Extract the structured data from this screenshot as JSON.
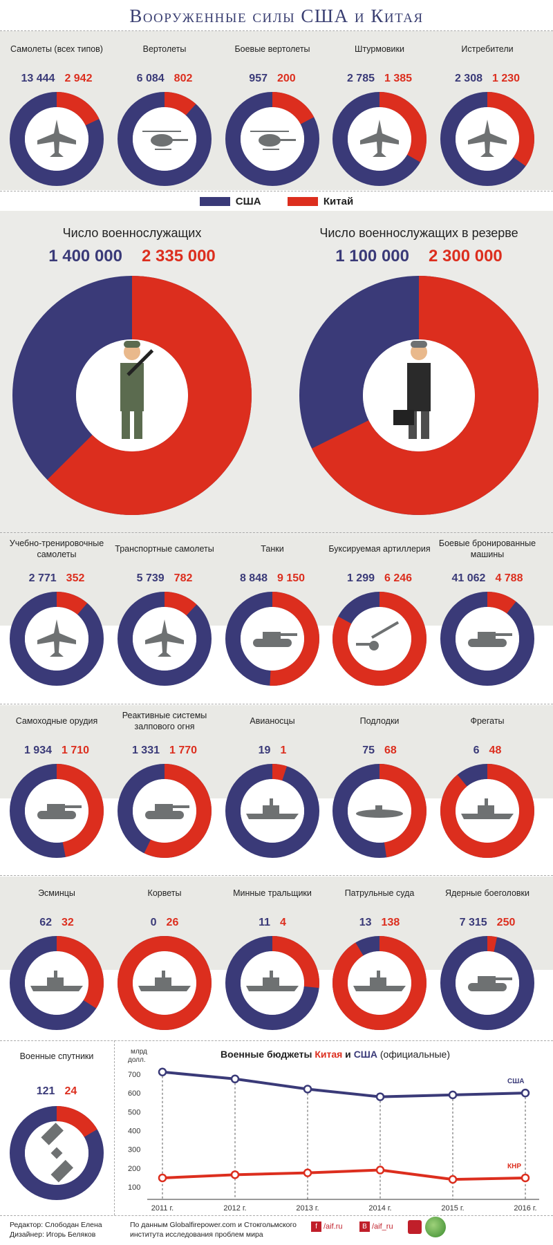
{
  "page_title": "Вооруженные силы США и Китая",
  "legend": {
    "us": "США",
    "cn": "Китай"
  },
  "colors": {
    "us": "#3a3a78",
    "cn": "#dc2e1e",
    "inner_bg": "#ffffff",
    "band_bg": "#e9e9e5"
  },
  "sections": [
    [
      {
        "label": "Самолеты (всех типов)",
        "us": "13 444",
        "cn": "2 942",
        "us_value": 13444,
        "cn_value": 2942,
        "icon": "aircraft-icon"
      },
      {
        "label": "Вертолеты",
        "us": "6 084",
        "cn": "802",
        "us_value": 6084,
        "cn_value": 802,
        "icon": "helicopter-icon"
      },
      {
        "label": "Боевые вертолеты",
        "us": "957",
        "cn": "200",
        "us_value": 957,
        "cn_value": 200,
        "icon": "attack-helicopter-icon"
      },
      {
        "label": "Штурмовики",
        "us": "2 785",
        "cn": "1 385",
        "us_value": 2785,
        "cn_value": 1385,
        "icon": "attack-aircraft-icon"
      },
      {
        "label": "Истребители",
        "us": "2 308",
        "cn": "1 230",
        "us_value": 2308,
        "cn_value": 1230,
        "icon": "fighter-icon"
      }
    ],
    [
      {
        "label": "Учебно-тренировочные самолеты",
        "us": "2 771",
        "cn": "352",
        "us_value": 2771,
        "cn_value": 352,
        "icon": "trainer-aircraft-icon"
      },
      {
        "label": "Транспортные самолеты",
        "us": "5 739",
        "cn": "782",
        "us_value": 5739,
        "cn_value": 782,
        "icon": "transport-aircraft-icon"
      },
      {
        "label": "Танки",
        "us": "8 848",
        "cn": "9 150",
        "us_value": 8848,
        "cn_value": 9150,
        "icon": "tank-icon"
      },
      {
        "label": "Буксируемая артиллерия",
        "us": "1 299",
        "cn": "6 246",
        "us_value": 1299,
        "cn_value": 6246,
        "icon": "artillery-icon"
      },
      {
        "label": "Боевые бронированные машины",
        "us": "41 062",
        "cn": "4 788",
        "us_value": 41062,
        "cn_value": 4788,
        "icon": "armored-vehicle-icon"
      }
    ],
    [
      {
        "label": "Самоходные орудия",
        "us": "1 934",
        "cn": "1 710",
        "us_value": 1934,
        "cn_value": 1710,
        "icon": "self-propelled-gun-icon"
      },
      {
        "label": "Реактивные системы залпового огня",
        "us": "1 331",
        "cn": "1 770",
        "us_value": 1331,
        "cn_value": 1770,
        "icon": "rocket-launcher-icon"
      },
      {
        "label": "Авианосцы",
        "us": "19",
        "cn": "1",
        "us_value": 19,
        "cn_value": 1,
        "icon": "aircraft-carrier-icon"
      },
      {
        "label": "Подлодки",
        "us": "75",
        "cn": "68",
        "us_value": 75,
        "cn_value": 68,
        "icon": "submarine-icon"
      },
      {
        "label": "Фрегаты",
        "us": "6",
        "cn": "48",
        "us_value": 6,
        "cn_value": 48,
        "icon": "frigate-icon"
      }
    ],
    [
      {
        "label": "Эсминцы",
        "us": "62",
        "cn": "32",
        "us_value": 62,
        "cn_value": 32,
        "icon": "destroyer-icon"
      },
      {
        "label": "Корветы",
        "us": "0",
        "cn": "26",
        "us_value": 0,
        "cn_value": 26,
        "icon": "corvette-icon"
      },
      {
        "label": "Минные тральщики",
        "us": "11",
        "cn": "4",
        "us_value": 11,
        "cn_value": 4,
        "icon": "minesweeper-icon"
      },
      {
        "label": "Патрульные суда",
        "us": "13",
        "cn": "138",
        "us_value": 13,
        "cn_value": 138,
        "icon": "patrol-boat-icon"
      },
      {
        "label": "Ядерные боеголовки",
        "us": "7 315",
        "cn": "250",
        "us_value": 7315,
        "cn_value": 250,
        "icon": "nuclear-warhead-icon"
      }
    ]
  ],
  "personnel": [
    {
      "label": "Число военнослужащих",
      "us": "1 400 000",
      "cn": "2 335 000",
      "us_value": 1400000,
      "cn_value": 2335000,
      "icon": "soldier-icon"
    },
    {
      "label": "Число военнослужащих в резерве",
      "us": "1 100 000",
      "cn": "2 300 000",
      "us_value": 1100000,
      "cn_value": 2300000,
      "icon": "reservist-icon"
    }
  ],
  "satellites": {
    "label": "Военные спутники",
    "us": "121",
    "cn": "24",
    "us_value": 121,
    "cn_value": 24,
    "icon": "satellite-icon"
  },
  "chart_data": {
    "type": "line",
    "title_parts": [
      "Военные бюджеты ",
      "Китая",
      " и ",
      "США",
      " (официальные)"
    ],
    "ylabel_line1": "млрд",
    "ylabel_line2": "долл.",
    "ylim": [
      100,
      700
    ],
    "yticks": [
      100,
      200,
      300,
      400,
      500,
      600,
      700
    ],
    "categories": [
      "2011 г.",
      "2012 г.",
      "2013 г.",
      "2014 г.",
      "2015 г.",
      "2016 г."
    ],
    "series": [
      {
        "name": "США",
        "values": [
          712,
          675,
          621,
          580,
          590,
          600
        ],
        "color": "#3a3a78"
      },
      {
        "name": "КНР",
        "values": [
          148,
          165,
          175,
          190,
          140,
          148
        ],
        "color": "#dc2e1e"
      }
    ],
    "grid": false,
    "legend": "inline-right"
  },
  "footer": {
    "editor": "Редактор:  Слободан Елена",
    "designer": "Дизайнер: Игорь Беляков",
    "source_line1": "По данным Globalfirepower.com и Стокгольмского",
    "source_line2": "института исследования проблем мира",
    "social": [
      "/aif.ru",
      "/aif_ru"
    ]
  }
}
